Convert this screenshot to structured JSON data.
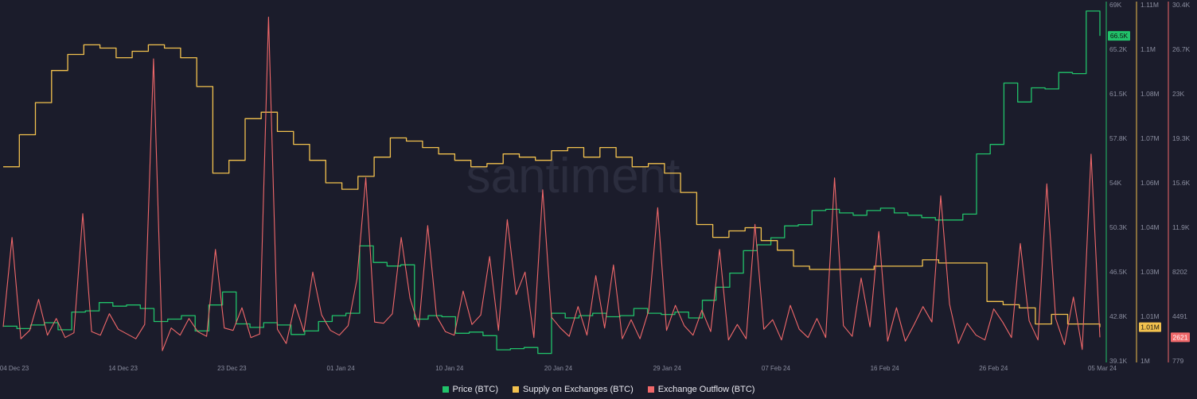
{
  "watermark": "santiment",
  "colors": {
    "background": "#1b1c2b",
    "price": "#21c26a",
    "supply": "#f2c14e",
    "outflow": "#f0686a",
    "axis_text": "#8a8d9f"
  },
  "chart_data": {
    "type": "line",
    "title": "",
    "x_labels": [
      "04 Dec 23",
      "14 Dec 23",
      "23 Dec 23",
      "01 Jan 24",
      "10 Jan 24",
      "20 Jan 24",
      "29 Jan 24",
      "07 Feb 24",
      "16 Feb 24",
      "26 Feb 24",
      "05 Mar 24"
    ],
    "axes": {
      "price": {
        "ticks": [
          "69K",
          "65.2K",
          "61.5K",
          "57.8K",
          "54K",
          "50.3K",
          "46.5K",
          "42.8K",
          "39.1K"
        ],
        "range": [
          39100,
          69000
        ],
        "badge": "66.5K",
        "badge_value": 66500
      },
      "supply": {
        "ticks": [
          "1.11M",
          "1.1M",
          "1.08M",
          "1.07M",
          "1.06M",
          "1.04M",
          "1.03M",
          "1.01M",
          "1M"
        ],
        "range": [
          1000000,
          1110000
        ],
        "badge": "1.01M",
        "badge_value": 1010000
      },
      "outflow": {
        "ticks": [
          "30.4K",
          "26.7K",
          "23K",
          "19.3K",
          "15.6K",
          "11.9K",
          "8202",
          "4491",
          "779"
        ],
        "range": [
          779,
          30400
        ],
        "badge": "2621",
        "badge_value": 2621
      }
    },
    "series": [
      {
        "name": "Price (BTC)",
        "color": "#21c26a",
        "values": [
          41900,
          41700,
          42000,
          42200,
          41600,
          43100,
          43200,
          43900,
          43600,
          43700,
          43400,
          42300,
          42500,
          42800,
          41500,
          43700,
          44800,
          42100,
          41800,
          42200,
          42000,
          41200,
          41500,
          42300,
          42800,
          43000,
          48700,
          47300,
          47000,
          47100,
          42500,
          42800,
          42700,
          41300,
          41400,
          41100,
          39900,
          40000,
          40100,
          39600,
          43000,
          42600,
          42800,
          43000,
          42700,
          42800,
          43400,
          43000,
          42900,
          43100,
          42600,
          44100,
          45200,
          46400,
          48300,
          48800,
          49400,
          50400,
          50500,
          51700,
          51800,
          51500,
          51300,
          51700,
          51900,
          51500,
          51300,
          51100,
          50900,
          50900,
          51400,
          56500,
          57300,
          62500,
          60900,
          62100,
          62000,
          63400,
          63300,
          68600,
          66500
        ]
      },
      {
        "name": "Supply on Exchanges (BTC)",
        "color": "#f2c14e",
        "values": [
          1060000,
          1070000,
          1080000,
          1090000,
          1095000,
          1098000,
          1097000,
          1094000,
          1096000,
          1098000,
          1097000,
          1094000,
          1085000,
          1058000,
          1062000,
          1075000,
          1077000,
          1071000,
          1067000,
          1062000,
          1055000,
          1053000,
          1057000,
          1063000,
          1069000,
          1068000,
          1066000,
          1064000,
          1062000,
          1060000,
          1061000,
          1064000,
          1063000,
          1062000,
          1065000,
          1066000,
          1063000,
          1066000,
          1063000,
          1060000,
          1061000,
          1058000,
          1052000,
          1042000,
          1038000,
          1040000,
          1041000,
          1037000,
          1034000,
          1029000,
          1028000,
          1028000,
          1028000,
          1028000,
          1029000,
          1029000,
          1029000,
          1031000,
          1030000,
          1030000,
          1030000,
          1018000,
          1017000,
          1016000,
          1011000,
          1014000,
          1011000,
          1011000,
          1010000
        ]
      },
      {
        "name": "Exchange Outflow (BTC)",
        "color": "#f0686a",
        "values": [
          3500,
          11000,
          2500,
          3200,
          5800,
          2800,
          4200,
          2600,
          3000,
          13000,
          3100,
          2800,
          4600,
          3300,
          2900,
          2500,
          3700,
          26000,
          1500,
          3400,
          2800,
          4200,
          3100,
          2700,
          10000,
          3400,
          3200,
          5100,
          2600,
          2900,
          29500,
          3300,
          2100,
          5400,
          3100,
          8100,
          4500,
          3200,
          2800,
          3600,
          7500,
          16000,
          3900,
          3800,
          4600,
          11000,
          5900,
          3500,
          12000,
          4400,
          3100,
          2800,
          6500,
          3700,
          4500,
          9400,
          3200,
          12500,
          6200,
          8100,
          2600,
          15000,
          4300,
          3400,
          2700,
          5200,
          2800,
          7800,
          3400,
          8700,
          2500,
          4100,
          2500,
          4900,
          13500,
          3200,
          5300,
          3600,
          2800,
          4900,
          3100,
          10000,
          2400,
          3700,
          2500,
          12100,
          3300,
          4100,
          2400,
          5300,
          3300,
          2600,
          4200,
          2600,
          16000,
          3600,
          2700,
          7600,
          3500,
          11500,
          2300,
          5100,
          2300,
          3700,
          5200,
          3900,
          14500,
          5400,
          2100,
          3800,
          2800,
          2400,
          5000,
          3900,
          2600,
          10500,
          4000,
          2400,
          15500,
          4200,
          2000,
          6000,
          1600,
          18000,
          2621
        ]
      }
    ],
    "legend": [
      "Price (BTC)",
      "Supply on Exchanges (BTC)",
      "Exchange Outflow (BTC)"
    ],
    "legend_position": "bottom-center",
    "grid": false
  }
}
